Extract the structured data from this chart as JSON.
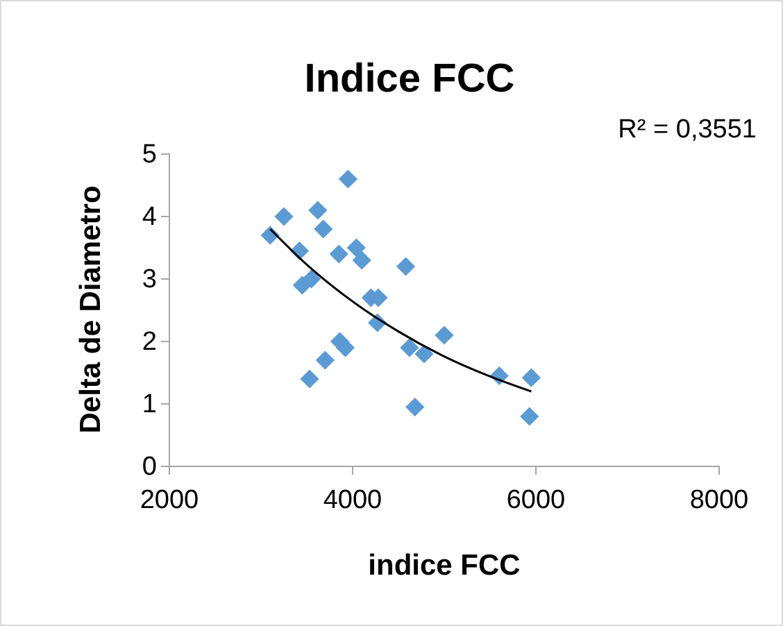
{
  "chart_data": {
    "type": "scatter",
    "title": "Indice FCC",
    "xlabel": "indice FCC",
    "ylabel": "Delta de Diametro",
    "xlim": [
      2000,
      8000
    ],
    "xticks": [
      2000,
      4000,
      6000,
      8000
    ],
    "ylim": [
      0,
      5
    ],
    "yticks": [
      0,
      1,
      2,
      3,
      4,
      5
    ],
    "grid": false,
    "marker": "diamond",
    "annotations": [
      "R² = 0,3551"
    ],
    "series": [
      {
        "color": "#5b9bd5",
        "x": [
          3100,
          3250,
          3420,
          3550,
          3450,
          3620,
          3680,
          3850,
          3950,
          4040,
          4100,
          4200,
          4280,
          4270,
          4580,
          5000,
          4620,
          4780,
          3860,
          3920,
          3700,
          3530,
          4680,
          5600,
          5950,
          5930
        ],
        "values": [
          3.7,
          4.0,
          3.45,
          3.0,
          2.9,
          4.1,
          3.8,
          3.4,
          4.6,
          3.5,
          3.3,
          2.7,
          2.7,
          2.3,
          3.2,
          2.1,
          1.9,
          1.8,
          2.0,
          1.9,
          1.7,
          1.4,
          0.95,
          1.45,
          1.42,
          0.8
        ]
      },
      {
        "type": "line",
        "color": "#000000",
        "marker": "none",
        "x": [
          3100,
          3500,
          4000,
          4500,
          5000,
          5500,
          5950
        ],
        "values": [
          3.8,
          3.23,
          2.64,
          2.16,
          1.76,
          1.44,
          1.2
        ]
      }
    ]
  }
}
